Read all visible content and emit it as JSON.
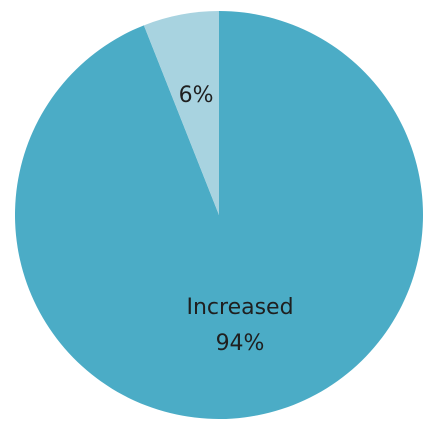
{
  "chart_data": {
    "type": "pie",
    "title": "",
    "slices": [
      {
        "name": "Increased",
        "value": 94,
        "label": "94%",
        "color": "#4bacc6"
      },
      {
        "name": "",
        "value": 6,
        "label": "6%",
        "color": "#a8d3e0"
      }
    ],
    "start_angle_deg": 0,
    "direction": "clockwise",
    "legend": "none"
  }
}
